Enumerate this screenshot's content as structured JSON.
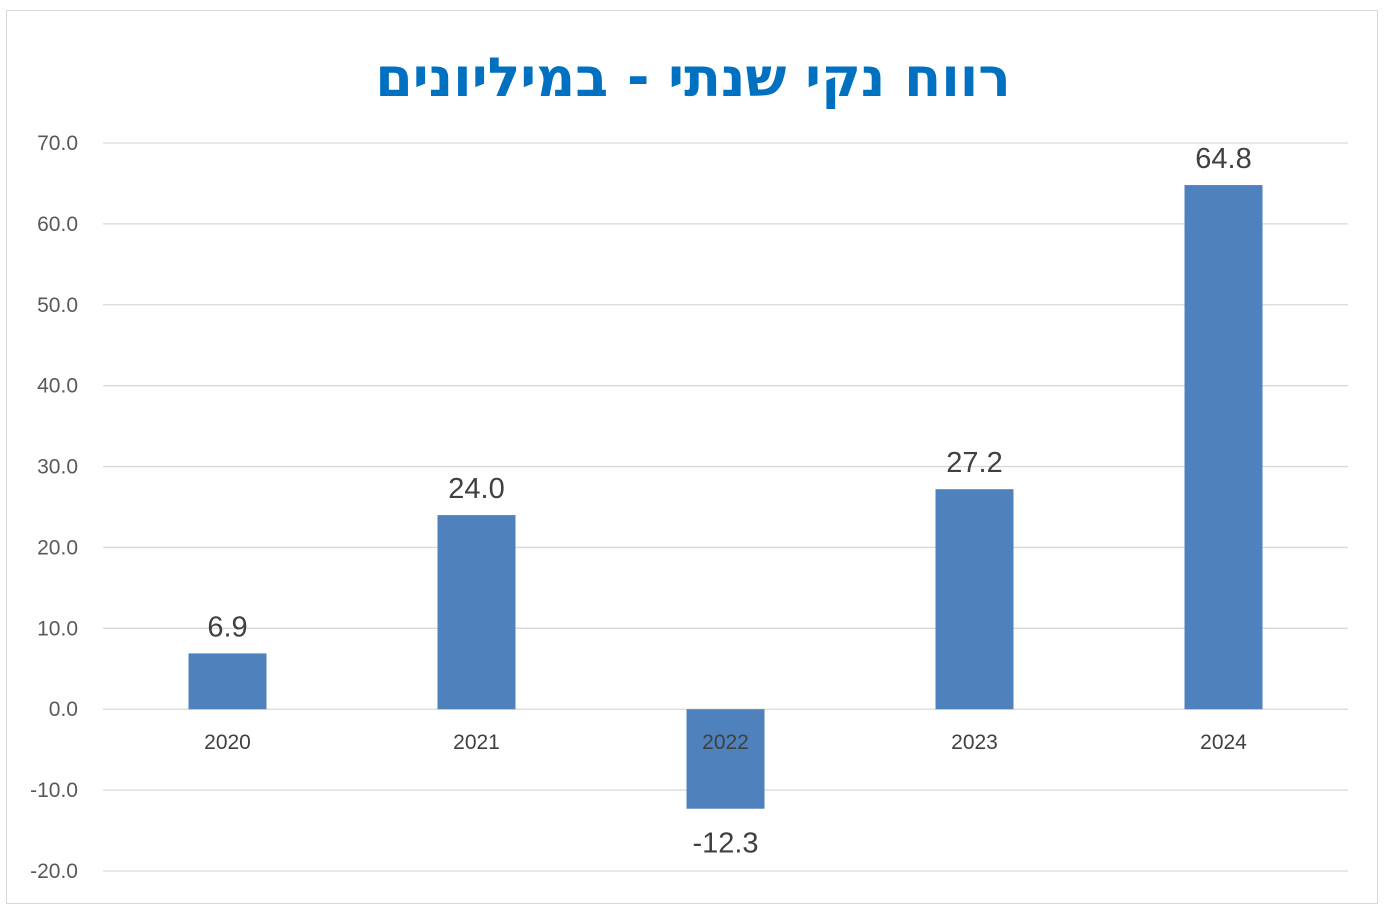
{
  "chart_data": {
    "type": "bar",
    "title": "רווח נקי שנתי - במיליונים",
    "categories": [
      "2020",
      "2021",
      "2022",
      "2023",
      "2024"
    ],
    "values": [
      6.9,
      24.0,
      -12.3,
      27.2,
      64.8
    ],
    "data_labels": [
      "6.9",
      "24.0",
      "-12.3",
      "27.2",
      "64.8"
    ],
    "ylim": [
      -20,
      70
    ],
    "yticks": [
      70,
      60,
      50,
      40,
      30,
      20,
      10,
      0,
      -10,
      -20
    ],
    "ytick_labels": [
      "70.0",
      "60.0",
      "50.0",
      "40.0",
      "30.0",
      "20.0",
      "10.0",
      "0.0",
      "-10.0",
      "-20.0"
    ],
    "grid": true,
    "legend": "none",
    "bar_color": "#4f81bd",
    "title_color": "#0070c0"
  }
}
